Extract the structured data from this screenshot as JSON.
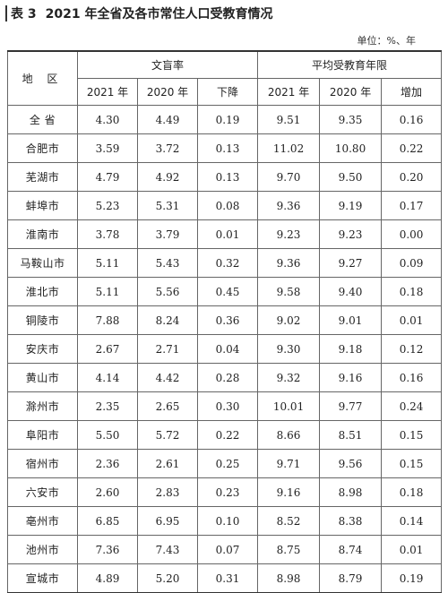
{
  "title": {
    "label": "表 3",
    "text": "2021 年全省及各市常住人口受教育情况"
  },
  "unit": "单位：%、年",
  "headers": {
    "region": "地 区",
    "group1": "文盲率",
    "group2": "平均受教育年限",
    "sub": [
      "2021 年",
      "2020 年",
      "下降",
      "2021 年",
      "2020 年",
      "增加"
    ]
  },
  "rows": [
    {
      "region": "全  省",
      "v": [
        "4.30",
        "4.49",
        "0.19",
        "9.51",
        "9.35",
        "0.16"
      ]
    },
    {
      "region": "合肥市",
      "v": [
        "3.59",
        "3.72",
        "0.13",
        "11.02",
        "10.80",
        "0.22"
      ]
    },
    {
      "region": "芜湖市",
      "v": [
        "4.79",
        "4.92",
        "0.13",
        "9.70",
        "9.50",
        "0.20"
      ]
    },
    {
      "region": "蚌埠市",
      "v": [
        "5.23",
        "5.31",
        "0.08",
        "9.36",
        "9.19",
        "0.17"
      ]
    },
    {
      "region": "淮南市",
      "v": [
        "3.78",
        "3.79",
        "0.01",
        "9.23",
        "9.23",
        "0.00"
      ]
    },
    {
      "region": "马鞍山市",
      "v": [
        "5.11",
        "5.43",
        "0.32",
        "9.36",
        "9.27",
        "0.09"
      ]
    },
    {
      "region": "淮北市",
      "v": [
        "5.11",
        "5.56",
        "0.45",
        "9.58",
        "9.40",
        "0.18"
      ]
    },
    {
      "region": "铜陵市",
      "v": [
        "7.88",
        "8.24",
        "0.36",
        "9.02",
        "9.01",
        "0.01"
      ]
    },
    {
      "region": "安庆市",
      "v": [
        "2.67",
        "2.71",
        "0.04",
        "9.30",
        "9.18",
        "0.12"
      ]
    },
    {
      "region": "黄山市",
      "v": [
        "4.14",
        "4.42",
        "0.28",
        "9.32",
        "9.16",
        "0.16"
      ]
    },
    {
      "region": "滁州市",
      "v": [
        "2.35",
        "2.65",
        "0.30",
        "10.01",
        "9.77",
        "0.24"
      ]
    },
    {
      "region": "阜阳市",
      "v": [
        "5.50",
        "5.72",
        "0.22",
        "8.66",
        "8.51",
        "0.15"
      ]
    },
    {
      "region": "宿州市",
      "v": [
        "2.36",
        "2.61",
        "0.25",
        "9.71",
        "9.56",
        "0.15"
      ]
    },
    {
      "region": "六安市",
      "v": [
        "2.60",
        "2.83",
        "0.23",
        "9.16",
        "8.98",
        "0.18"
      ]
    },
    {
      "region": "亳州市",
      "v": [
        "6.85",
        "6.95",
        "0.10",
        "8.52",
        "8.38",
        "0.14"
      ]
    },
    {
      "region": "池州市",
      "v": [
        "7.36",
        "7.43",
        "0.07",
        "8.75",
        "8.74",
        "0.01"
      ]
    },
    {
      "region": "宣城市",
      "v": [
        "4.89",
        "5.20",
        "0.31",
        "8.98",
        "8.79",
        "0.19"
      ]
    }
  ]
}
